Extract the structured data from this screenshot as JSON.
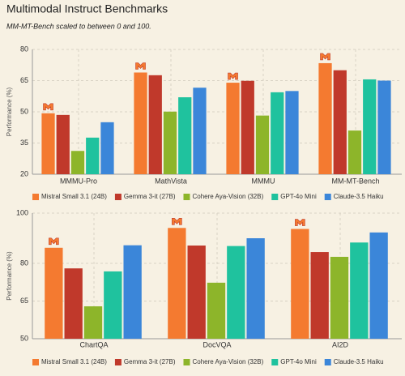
{
  "title": "Multimodal Instruct Benchmarks",
  "subtitle": "MM-MT-Bench scaled to between 0 and 100.",
  "chart_data": [
    {
      "type": "bar",
      "ylabel": "Performance (%)",
      "categories": [
        "MMMU-Pro",
        "MathVista",
        "MMMU",
        "MM-MT-Bench"
      ],
      "series": [
        {
          "name": "Mistral Small 3.1 (24B)",
          "color": "#f47a30",
          "values": [
            49.3,
            68.9,
            64.0,
            73.4
          ]
        },
        {
          "name": "Gemma 3-it (27B)",
          "color": "#c0392b",
          "values": [
            48.5,
            67.6,
            64.9,
            70.0
          ]
        },
        {
          "name": "Cohere Aya-Vision (32B)",
          "color": "#8db52a",
          "values": [
            31.2,
            50.1,
            48.2,
            41.0
          ]
        },
        {
          "name": "GPT-4o Mini",
          "color": "#1fc29e",
          "values": [
            37.6,
            57.0,
            59.4,
            65.6
          ]
        },
        {
          "name": "Claude-3.5 Haiku",
          "color": "#3b86d9",
          "values": [
            45.0,
            61.6,
            60.0,
            65.0
          ]
        }
      ],
      "ylim": [
        20,
        80
      ],
      "yticks": [
        20,
        35,
        50,
        65,
        80
      ],
      "grid": true
    },
    {
      "type": "bar",
      "ylabel": "Performance (%)",
      "categories": [
        "ChartQA",
        "DocVQA",
        "AI2D"
      ],
      "series": [
        {
          "name": "Mistral Small 3.1 (24B)",
          "color": "#f47a30",
          "values": [
            86.2,
            94.1,
            93.7
          ]
        },
        {
          "name": "Gemma 3-it (27B)",
          "color": "#c0392b",
          "values": [
            78.0,
            87.1,
            84.5
          ]
        },
        {
          "name": "Cohere Aya-Vision (32B)",
          "color": "#8db52a",
          "values": [
            62.9,
            72.3,
            82.6
          ]
        },
        {
          "name": "GPT-4o Mini",
          "color": "#1fc29e",
          "values": [
            76.8,
            86.9,
            88.3
          ]
        },
        {
          "name": "Claude-3.5 Haiku",
          "color": "#3b86d9",
          "values": [
            87.2,
            90.0,
            92.3
          ]
        }
      ],
      "ylim": [
        50,
        100
      ],
      "yticks": [
        50,
        65,
        80,
        100
      ],
      "grid": true
    }
  ]
}
